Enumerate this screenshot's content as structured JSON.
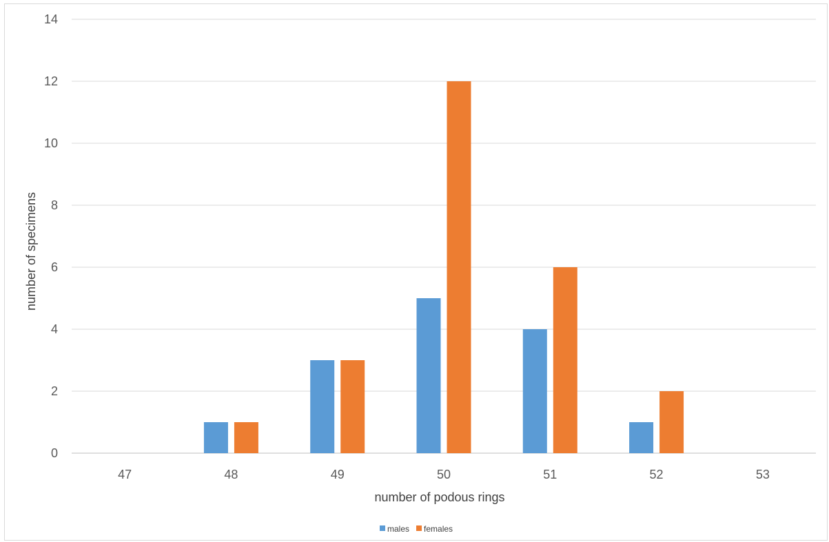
{
  "chart_data": {
    "type": "bar",
    "title": "",
    "xlabel": "number of podous rings",
    "ylabel": "number of specimens",
    "categories": [
      "47",
      "48",
      "49",
      "50",
      "51",
      "52",
      "53"
    ],
    "series": [
      {
        "name": "males",
        "color": "#5b9bd5",
        "values": [
          0,
          1,
          3,
          5,
          4,
          1,
          0
        ]
      },
      {
        "name": "females",
        "color": "#ed7d31",
        "values": [
          0,
          1,
          3,
          12,
          6,
          2,
          0
        ]
      }
    ],
    "ylim": [
      0,
      14
    ],
    "yticks": [
      0,
      2,
      4,
      6,
      8,
      10,
      12,
      14
    ],
    "grid": true,
    "legend_position": "bottom"
  }
}
